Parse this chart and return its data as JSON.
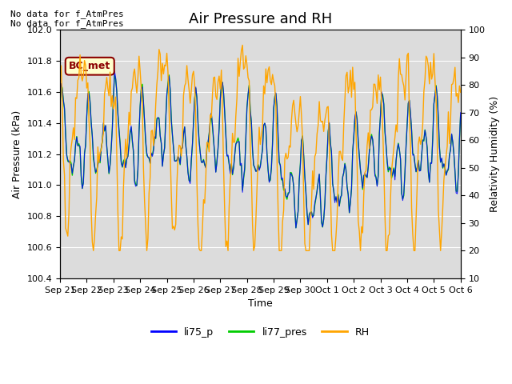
{
  "title": "Air Pressure and RH",
  "xlabel": "Time",
  "ylabel_left": "Air Pressure (kPa)",
  "ylabel_right": "Relativity Humidity (%)",
  "annotation_line1": "No data for f_AtmPres",
  "annotation_line2": "No data for f_AtmPres",
  "box_label": "BC_met",
  "ylim_left": [
    100.4,
    102.0
  ],
  "ylim_right": [
    10,
    100
  ],
  "yticks_left": [
    100.4,
    100.6,
    100.8,
    101.0,
    101.2,
    101.4,
    101.6,
    101.8,
    102.0
  ],
  "yticks_right": [
    10,
    20,
    30,
    40,
    50,
    60,
    70,
    80,
    90,
    100
  ],
  "bg_color": "#dcdcdc",
  "legend": [
    "li75_p",
    "li77_pres",
    "RH"
  ],
  "legend_colors": [
    "#0000ff",
    "#00cc00",
    "#ffa500"
  ],
  "line_colors": [
    "#0000ff",
    "#00cc00",
    "#ffa500"
  ],
  "x_tick_labels": [
    "Sep 21",
    "Sep 22",
    "Sep 23",
    "Sep 24",
    "Sep 25",
    "Sep 26",
    "Sep 27",
    "Sep 28",
    "Sep 29",
    "Sep 30",
    "Oct 1",
    "Oct 2",
    "Oct 3",
    "Oct 4",
    "Oct 5",
    "Oct 6"
  ],
  "grid_color": "#ffffff",
  "title_fontsize": 13,
  "axis_fontsize": 9,
  "tick_fontsize": 8,
  "annot_fontsize": 8,
  "legend_fontsize": 9
}
